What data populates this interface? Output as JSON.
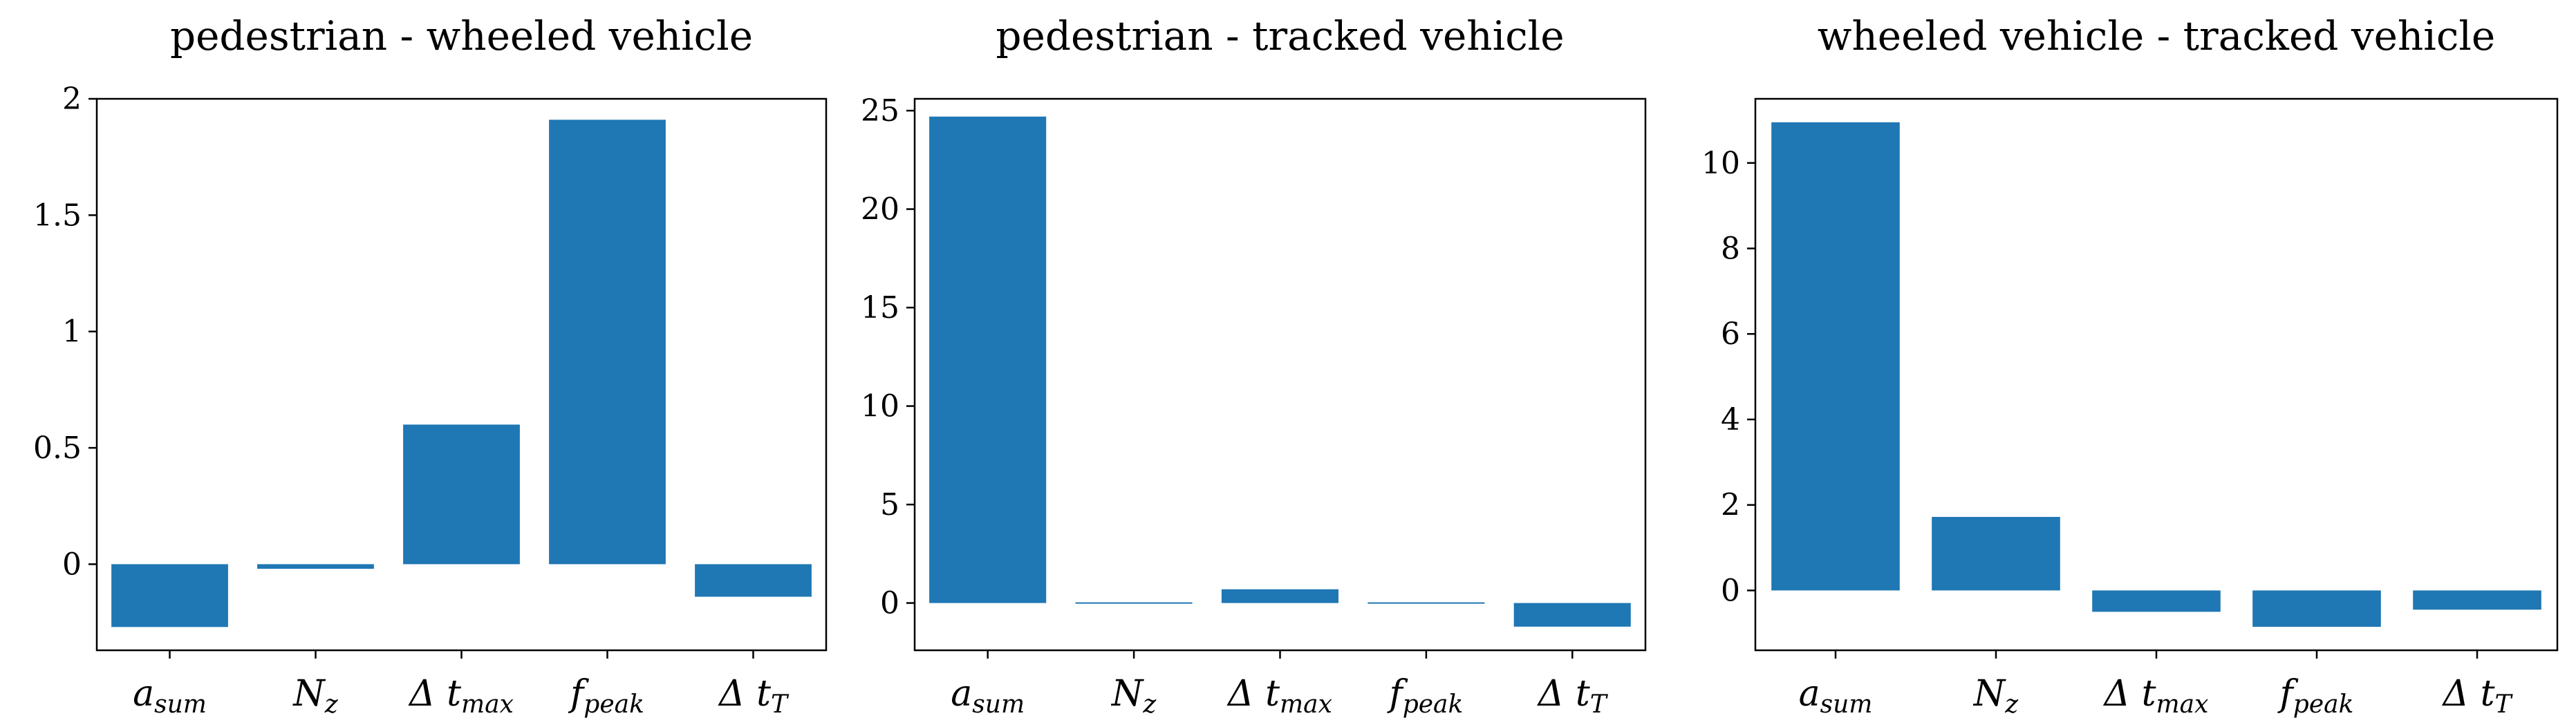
{
  "chart_data": [
    {
      "type": "bar",
      "title": "pedestrian - wheeled vehicle",
      "categories": [
        {
          "base": "a",
          "sub": "sum"
        },
        {
          "base": "N",
          "sub": "z"
        },
        {
          "base": "Δ t",
          "sub": "max"
        },
        {
          "base": "f",
          "sub": "peak"
        },
        {
          "base": "Δ t",
          "sub": "T"
        }
      ],
      "values": [
        -0.27,
        -0.02,
        0.6,
        1.91,
        -0.14
      ],
      "ylim": [
        -0.37,
        2.0
      ],
      "yticks": [
        0,
        0.5,
        1,
        1.5,
        2
      ],
      "ytick_labels": [
        "0",
        "0.5",
        "1",
        "1.5",
        "2"
      ],
      "xlabel": "",
      "ylabel": "",
      "color": "#1f77b4"
    },
    {
      "type": "bar",
      "title": "pedestrian - tracked vehicle",
      "categories": [
        {
          "base": "a",
          "sub": "sum"
        },
        {
          "base": "N",
          "sub": "z"
        },
        {
          "base": "Δ t",
          "sub": "max"
        },
        {
          "base": "f",
          "sub": "peak"
        },
        {
          "base": "Δ t",
          "sub": "T"
        }
      ],
      "values": [
        24.7,
        0.05,
        0.7,
        0.05,
        -1.2
      ],
      "ylim": [
        -2.4,
        25.6
      ],
      "yticks": [
        0,
        5,
        10,
        15,
        20,
        25
      ],
      "ytick_labels": [
        "0",
        "5",
        "10",
        "15",
        "20",
        "25"
      ],
      "xlabel": "",
      "ylabel": "",
      "color": "#1f77b4"
    },
    {
      "type": "bar",
      "title": "wheeled vehicle - tracked vehicle",
      "categories": [
        {
          "base": "a",
          "sub": "sum"
        },
        {
          "base": "N",
          "sub": "z"
        },
        {
          "base": "Δ t",
          "sub": "max"
        },
        {
          "base": "f",
          "sub": "peak"
        },
        {
          "base": "Δ t",
          "sub": "T"
        }
      ],
      "values": [
        10.95,
        1.72,
        -0.5,
        -0.85,
        -0.45
      ],
      "ylim": [
        -1.4,
        11.5
      ],
      "yticks": [
        0,
        2,
        4,
        6,
        8,
        10
      ],
      "ytick_labels": [
        "0",
        "2",
        "4",
        "6",
        "8",
        "10"
      ],
      "xlabel": "",
      "ylabel": "",
      "color": "#1f77b4"
    }
  ]
}
